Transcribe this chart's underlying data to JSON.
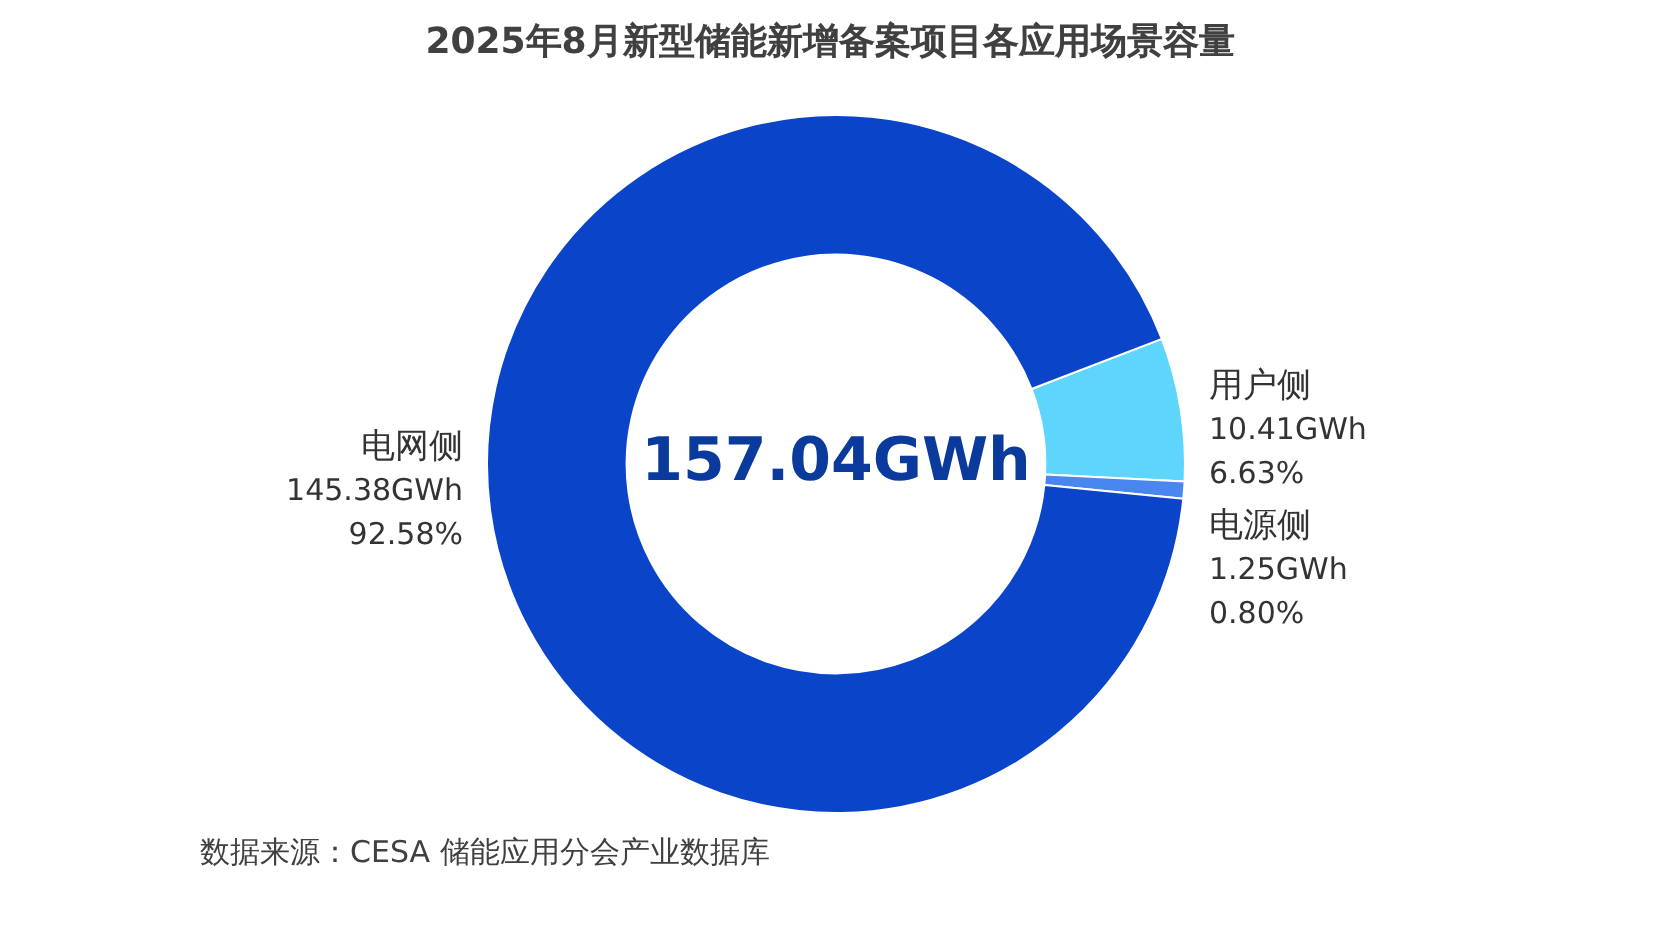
{
  "chart_data": {
    "type": "donut",
    "title": "2025年8月新型储能新增备案项目各应用场景容量",
    "categories": [
      "用户侧",
      "电源侧",
      "电网侧"
    ],
    "values": [
      10.41,
      1.25,
      145.38
    ],
    "colors": [
      "#5dd5fd",
      "#4a86f0",
      "#0a44c8"
    ],
    "value_labels": [
      "10.41GWh\n6.63%",
      "1.25GWh\n0.80%",
      "145.38GWh\n92.58%"
    ],
    "annotations": [
      "157.04GWh",
      "数据来源：CESA 储能应用分会产业数据库"
    ],
    "legend": false
  }
}
